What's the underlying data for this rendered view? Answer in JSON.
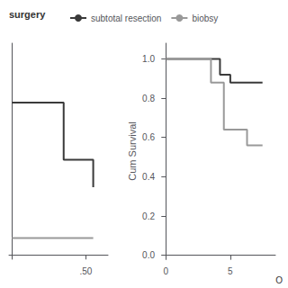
{
  "chart_data": [
    {
      "type": "line",
      "xlim": [
        -0.02,
        0.65
      ],
      "xticks": [
        {
          "value": 0.5,
          "label": ".50"
        }
      ],
      "ylim": [
        -0.02,
        1.0
      ],
      "yticks": [],
      "tick_labels": "x",
      "grid": false,
      "series": [
        {
          "type": "step",
          "color": "#3a3a3a",
          "x": [
            0.0,
            0.0,
            0.35,
            0.35,
            0.55,
            0.55
          ],
          "values": [
            0.72,
            0.72,
            0.72,
            0.45,
            0.45,
            0.32
          ]
        },
        {
          "type": "line",
          "color": "#999999",
          "x": [
            0.0,
            0.55
          ],
          "values": [
            0.08,
            0.08
          ]
        }
      ]
    },
    {
      "type": "step",
      "ylabel": "Cum Survival",
      "legend_title": "surgery",
      "legend": "top",
      "annotations": [
        "O"
      ],
      "grid": false,
      "xlim": [
        -0.3,
        8.5
      ],
      "xticks": [
        0,
        5
      ],
      "ylim": [
        -0.02,
        1.08
      ],
      "yticks": [
        {
          "value": 0.0,
          "label": "0.0"
        },
        {
          "value": 0.2,
          "label": "0.2"
        },
        {
          "value": 0.4,
          "label": "0.4"
        },
        {
          "value": 0.6,
          "label": "0.6"
        },
        {
          "value": 0.8,
          "label": "0.8"
        },
        {
          "value": 1.0,
          "label": "1.0"
        }
      ],
      "series": [
        {
          "name": "subtotal resection",
          "color": "#3a3a3a",
          "x": [
            0,
            4.2,
            4.2,
            5.0,
            5.0,
            5.8,
            5.8,
            7.5
          ],
          "values": [
            1.0,
            1.0,
            0.92,
            0.92,
            0.88,
            0.88,
            0.88,
            0.88
          ]
        },
        {
          "name": "biobsy",
          "color": "#999999",
          "x": [
            0,
            3.5,
            3.5,
            4.5,
            4.5,
            5.5,
            5.5,
            6.3,
            6.3,
            7.5
          ],
          "values": [
            1.0,
            1.0,
            0.88,
            0.88,
            0.64,
            0.64,
            0.64,
            0.64,
            0.56,
            0.56
          ]
        }
      ]
    }
  ]
}
